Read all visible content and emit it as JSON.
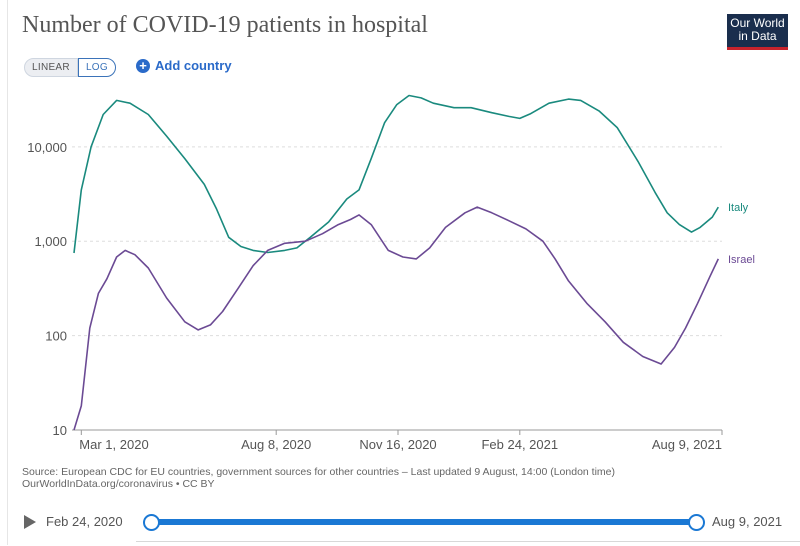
{
  "title": "Number of COVID-19 patients in hospital",
  "logo": {
    "line1": "Our World",
    "line2": "in Data"
  },
  "controls": {
    "linear_label": "LINEAR",
    "log_label": "LOG",
    "add_country_label": "Add country"
  },
  "source": {
    "line1": "Source: European CDC for EU countries, government sources for other countries – Last updated 9 August, 14:00 (London time)",
    "line2": "OurWorldInData.org/coronavirus • CC BY"
  },
  "timeline": {
    "start_label": "Feb 24, 2020",
    "end_label": "Aug 9, 2021"
  },
  "colors": {
    "italy": "#1a8a7e",
    "israel": "#6b4a94",
    "grid": "#dddddd",
    "axis_text": "#555555"
  },
  "chart_data": {
    "type": "line",
    "title": "Number of COVID-19 patients in hospital",
    "yscale": "log",
    "ylim": [
      10,
      40000
    ],
    "xlim": [
      "2020-02-24",
      "2021-08-09"
    ],
    "y_ticks": [
      {
        "value": 10,
        "label": "10"
      },
      {
        "value": 100,
        "label": "100"
      },
      {
        "value": 1000,
        "label": "1,000"
      },
      {
        "value": 10000,
        "label": "10,000"
      }
    ],
    "x_ticks": [
      {
        "date": "2020-03-01",
        "label": "Mar 1, 2020"
      },
      {
        "date": "2020-08-08",
        "label": "Aug 8, 2020"
      },
      {
        "date": "2020-11-16",
        "label": "Nov 16, 2020"
      },
      {
        "date": "2021-02-24",
        "label": "Feb 24, 2021"
      },
      {
        "date": "2021-08-09",
        "label": "Aug 9, 2021"
      }
    ],
    "grid": true,
    "legend": "right, end of lines",
    "series": [
      {
        "name": "Italy",
        "points": [
          [
            "2020-02-24",
            750
          ],
          [
            "2020-03-01",
            3500
          ],
          [
            "2020-03-09",
            10000
          ],
          [
            "2020-03-19",
            22000
          ],
          [
            "2020-03-30",
            31000
          ],
          [
            "2020-04-10",
            29000
          ],
          [
            "2020-04-25",
            22000
          ],
          [
            "2020-05-10",
            13000
          ],
          [
            "2020-05-25",
            7500
          ],
          [
            "2020-06-10",
            4000
          ],
          [
            "2020-06-20",
            2200
          ],
          [
            "2020-06-30",
            1100
          ],
          [
            "2020-07-10",
            880
          ],
          [
            "2020-07-20",
            800
          ],
          [
            "2020-08-01",
            760
          ],
          [
            "2020-08-15",
            800
          ],
          [
            "2020-08-25",
            850
          ],
          [
            "2020-09-05",
            1100
          ],
          [
            "2020-09-20",
            1600
          ],
          [
            "2020-10-05",
            2800
          ],
          [
            "2020-10-15",
            3500
          ],
          [
            "2020-10-25",
            7500
          ],
          [
            "2020-11-05",
            18000
          ],
          [
            "2020-11-15",
            28000
          ],
          [
            "2020-11-25",
            35000
          ],
          [
            "2020-12-05",
            33000
          ],
          [
            "2020-12-15",
            29000
          ],
          [
            "2021-01-01",
            26000
          ],
          [
            "2021-01-15",
            26000
          ],
          [
            "2021-02-01",
            23000
          ],
          [
            "2021-02-15",
            21000
          ],
          [
            "2021-02-24",
            20000
          ],
          [
            "2021-03-05",
            22500
          ],
          [
            "2021-03-20",
            29000
          ],
          [
            "2021-04-05",
            32000
          ],
          [
            "2021-04-15",
            31000
          ],
          [
            "2021-04-30",
            24000
          ],
          [
            "2021-05-15",
            16000
          ],
          [
            "2021-06-01",
            7000
          ],
          [
            "2021-06-15",
            3300
          ],
          [
            "2021-06-25",
            2000
          ],
          [
            "2021-07-05",
            1500
          ],
          [
            "2021-07-15",
            1250
          ],
          [
            "2021-07-22",
            1400
          ],
          [
            "2021-08-01",
            1800
          ],
          [
            "2021-08-06",
            2300
          ]
        ]
      },
      {
        "name": "Israel",
        "points": [
          [
            "2020-02-24",
            10
          ],
          [
            "2020-03-01",
            18
          ],
          [
            "2020-03-08",
            120
          ],
          [
            "2020-03-15",
            280
          ],
          [
            "2020-03-22",
            400
          ],
          [
            "2020-03-30",
            680
          ],
          [
            "2020-04-06",
            800
          ],
          [
            "2020-04-14",
            720
          ],
          [
            "2020-04-25",
            520
          ],
          [
            "2020-05-10",
            250
          ],
          [
            "2020-05-25",
            140
          ],
          [
            "2020-06-05",
            115
          ],
          [
            "2020-06-15",
            130
          ],
          [
            "2020-06-25",
            180
          ],
          [
            "2020-07-08",
            320
          ],
          [
            "2020-07-20",
            550
          ],
          [
            "2020-08-01",
            800
          ],
          [
            "2020-08-15",
            950
          ],
          [
            "2020-09-01",
            1000
          ],
          [
            "2020-09-15",
            1200
          ],
          [
            "2020-09-28",
            1500
          ],
          [
            "2020-10-08",
            1700
          ],
          [
            "2020-10-15",
            1900
          ],
          [
            "2020-10-25",
            1500
          ],
          [
            "2020-11-08",
            800
          ],
          [
            "2020-11-20",
            680
          ],
          [
            "2020-12-01",
            650
          ],
          [
            "2020-12-12",
            850
          ],
          [
            "2020-12-25",
            1400
          ],
          [
            "2021-01-10",
            2000
          ],
          [
            "2021-01-20",
            2300
          ],
          [
            "2021-02-01",
            2000
          ],
          [
            "2021-02-15",
            1650
          ],
          [
            "2021-03-01",
            1350
          ],
          [
            "2021-03-15",
            1000
          ],
          [
            "2021-03-25",
            650
          ],
          [
            "2021-04-05",
            380
          ],
          [
            "2021-04-20",
            220
          ],
          [
            "2021-05-05",
            140
          ],
          [
            "2021-05-20",
            85
          ],
          [
            "2021-06-05",
            60
          ],
          [
            "2021-06-20",
            50
          ],
          [
            "2021-07-01",
            75
          ],
          [
            "2021-07-10",
            120
          ],
          [
            "2021-07-20",
            220
          ],
          [
            "2021-07-30",
            420
          ],
          [
            "2021-08-06",
            650
          ]
        ]
      }
    ]
  }
}
